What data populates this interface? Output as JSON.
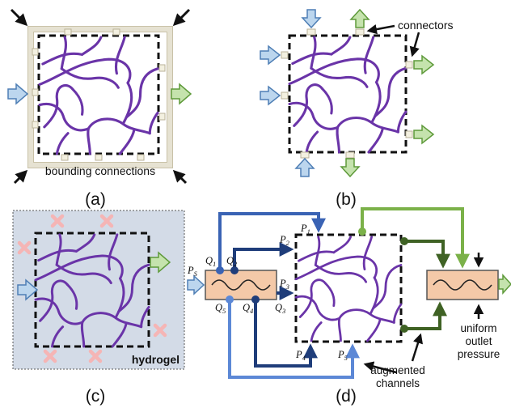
{
  "captions": {
    "a": "(a)",
    "b": "(b)",
    "c": "(c)",
    "d": "(d)"
  },
  "labels": {
    "bounding_connections": "bounding connections",
    "connectors": "connectors",
    "hydrogel": "hydrogel",
    "augmented_line1": "augmented",
    "augmented_line2": "channels",
    "uniform_line1": "uniform",
    "uniform_line2": "outlet",
    "uniform_line3": "pressure"
  },
  "variables": {
    "P": "P",
    "Q": "Q",
    "sub_s": "S",
    "sub_1": "1",
    "sub_2": "2",
    "sub_3": "3",
    "sub_4": "4",
    "sub_5": "5"
  },
  "colors": {
    "network": "#6a34a8",
    "inlet_arrow": "#bcd6ee",
    "outlet_arrow": "#c5e3ad",
    "hydrogel_bg": "#d3dbe7",
    "bounding_frame": "#e6e2d2",
    "remove_marker": "#f5b5b5",
    "dark_blue": "#1f3d7a",
    "blue": "#3a63b4",
    "light_blue": "#5c88d6",
    "dark_green": "#3f6224",
    "light_green": "#7bb149",
    "reservoir": "#f4c9a8"
  }
}
